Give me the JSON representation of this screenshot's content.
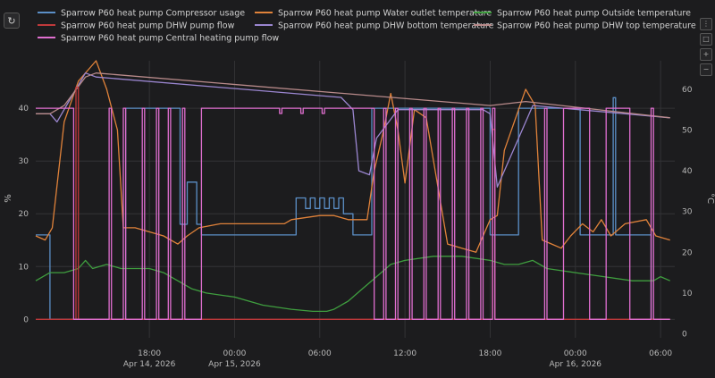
{
  "toolbar": {
    "reset_icon": "refresh-icon",
    "tool_icons": [
      "menu-icon",
      "crop-icon",
      "zoom-in-icon",
      "zoom-out-icon"
    ]
  },
  "chart_data": {
    "type": "line",
    "x_range": [
      "2026-04-14T10:00",
      "2026-04-16T07:00"
    ],
    "x_ticks": [
      {
        "t": "2026-04-14T18:00",
        "line1": "18:00",
        "line2": "Apr 14, 2026"
      },
      {
        "t": "2026-04-15T00:00",
        "line1": "00:00",
        "line2": "Apr 15, 2026"
      },
      {
        "t": "2026-04-15T06:00",
        "line1": "06:00",
        "line2": ""
      },
      {
        "t": "2026-04-15T12:00",
        "line1": "12:00",
        "line2": ""
      },
      {
        "t": "2026-04-15T18:00",
        "line1": "18:00",
        "line2": ""
      },
      {
        "t": "2026-04-16T00:00",
        "line1": "00:00",
        "line2": "Apr 16, 2026"
      },
      {
        "t": "2026-04-16T06:00",
        "line1": "06:00",
        "line2": ""
      }
    ],
    "y_left": {
      "label": "%",
      "range": [
        -3.5,
        49
      ],
      "ticks": [
        0,
        10,
        20,
        30,
        40
      ]
    },
    "y_right": {
      "label": "°C",
      "range": [
        -1,
        67
      ],
      "ticks": [
        0,
        10,
        20,
        30,
        40,
        50,
        60
      ]
    },
    "grid": true,
    "legend_position": "top",
    "series": [
      {
        "name": "Sparrow P60 heat pump Compressor usage",
        "color": "#5b8fc7",
        "axis": "left",
        "step": true,
        "points": [
          [
            "2026-04-14T10:00",
            16
          ],
          [
            "2026-04-14T10:40",
            16
          ],
          [
            "2026-04-14T11:00",
            0
          ],
          [
            "2026-04-14T16:10",
            0
          ],
          [
            "2026-04-14T16:20",
            40
          ],
          [
            "2026-04-14T19:20",
            40
          ],
          [
            "2026-04-14T20:10",
            18
          ],
          [
            "2026-04-14T20:40",
            26
          ],
          [
            "2026-04-14T21:00",
            26
          ],
          [
            "2026-04-14T21:20",
            18
          ],
          [
            "2026-04-14T21:40",
            16
          ],
          [
            "2026-04-15T04:00",
            16
          ],
          [
            "2026-04-15T04:20",
            23
          ],
          [
            "2026-04-15T05:00",
            21
          ],
          [
            "2026-04-15T05:20",
            23
          ],
          [
            "2026-04-15T05:40",
            21
          ],
          [
            "2026-04-15T06:00",
            23
          ],
          [
            "2026-04-15T06:20",
            21
          ],
          [
            "2026-04-15T06:40",
            23
          ],
          [
            "2026-04-15T07:00",
            21
          ],
          [
            "2026-04-15T07:20",
            23
          ],
          [
            "2026-04-15T07:40",
            20
          ],
          [
            "2026-04-15T08:20",
            16
          ],
          [
            "2026-04-15T09:20",
            16
          ],
          [
            "2026-04-15T09:40",
            40
          ],
          [
            "2026-04-15T17:50",
            40
          ],
          [
            "2026-04-15T18:00",
            16
          ],
          [
            "2026-04-15T19:40",
            16
          ],
          [
            "2026-04-15T20:00",
            40
          ],
          [
            "2026-04-16T00:00",
            40
          ],
          [
            "2026-04-16T00:20",
            16
          ],
          [
            "2026-04-16T02:20",
            16
          ],
          [
            "2026-04-16T02:40",
            42
          ],
          [
            "2026-04-16T02:50",
            16
          ],
          [
            "2026-04-16T05:00",
            16
          ],
          [
            "2026-04-16T05:20",
            0
          ],
          [
            "2026-04-16T06:40",
            0
          ]
        ]
      },
      {
        "name": "Sparrow P60 heat pump Water outlet temperature",
        "color": "#e0823a",
        "axis": "right",
        "points": [
          [
            "2026-04-14T10:00",
            24
          ],
          [
            "2026-04-14T10:40",
            23
          ],
          [
            "2026-04-14T11:10",
            26
          ],
          [
            "2026-04-14T12:00",
            52
          ],
          [
            "2026-04-14T13:00",
            62
          ],
          [
            "2026-04-14T14:15",
            67
          ],
          [
            "2026-04-14T15:00",
            60
          ],
          [
            "2026-04-14T15:45",
            50
          ],
          [
            "2026-04-14T16:10",
            26
          ],
          [
            "2026-04-14T17:00",
            26
          ],
          [
            "2026-04-14T19:00",
            24
          ],
          [
            "2026-04-14T20:00",
            22
          ],
          [
            "2026-04-14T20:40",
            24
          ],
          [
            "2026-04-14T21:30",
            26
          ],
          [
            "2026-04-14T23:00",
            27
          ],
          [
            "2026-04-15T03:30",
            27
          ],
          [
            "2026-04-15T04:00",
            28
          ],
          [
            "2026-04-15T06:00",
            29
          ],
          [
            "2026-04-15T07:00",
            29
          ],
          [
            "2026-04-15T08:00",
            28
          ],
          [
            "2026-04-15T09:20",
            28
          ],
          [
            "2026-04-15T09:50",
            40
          ],
          [
            "2026-04-15T10:30",
            50
          ],
          [
            "2026-04-15T11:00",
            59
          ],
          [
            "2026-04-15T11:30",
            50
          ],
          [
            "2026-04-15T12:00",
            37
          ],
          [
            "2026-04-15T12:40",
            55
          ],
          [
            "2026-04-15T13:30",
            53
          ],
          [
            "2026-04-15T15:00",
            22
          ],
          [
            "2026-04-15T16:00",
            21
          ],
          [
            "2026-04-15T17:00",
            20
          ],
          [
            "2026-04-15T18:00",
            28
          ],
          [
            "2026-04-15T18:30",
            29
          ],
          [
            "2026-04-15T19:00",
            45
          ],
          [
            "2026-04-15T20:00",
            55
          ],
          [
            "2026-04-15T20:30",
            60
          ],
          [
            "2026-04-15T21:10",
            56
          ],
          [
            "2026-04-15T21:40",
            23
          ],
          [
            "2026-04-15T22:20",
            22
          ],
          [
            "2026-04-15T23:00",
            21
          ],
          [
            "2026-04-15T23:40",
            24
          ],
          [
            "2026-04-16T00:30",
            27
          ],
          [
            "2026-04-16T01:15",
            25
          ],
          [
            "2026-04-16T01:50",
            28
          ],
          [
            "2026-04-16T02:30",
            24
          ],
          [
            "2026-04-16T03:30",
            27
          ],
          [
            "2026-04-16T05:00",
            28
          ],
          [
            "2026-04-16T05:40",
            24
          ],
          [
            "2026-04-16T06:40",
            23
          ]
        ]
      },
      {
        "name": "Sparrow P60 heat pump Outside temperature",
        "color": "#3f9e3f",
        "axis": "right",
        "points": [
          [
            "2026-04-14T10:00",
            13
          ],
          [
            "2026-04-14T11:00",
            15
          ],
          [
            "2026-04-14T12:00",
            15
          ],
          [
            "2026-04-14T13:00",
            16
          ],
          [
            "2026-04-14T13:30",
            18
          ],
          [
            "2026-04-14T14:00",
            16
          ],
          [
            "2026-04-14T15:00",
            17
          ],
          [
            "2026-04-14T16:00",
            16
          ],
          [
            "2026-04-14T17:00",
            16
          ],
          [
            "2026-04-14T18:00",
            16
          ],
          [
            "2026-04-14T19:00",
            15
          ],
          [
            "2026-04-14T20:00",
            13
          ],
          [
            "2026-04-14T21:00",
            11
          ],
          [
            "2026-04-14T22:00",
            10
          ],
          [
            "2026-04-15T00:00",
            9
          ],
          [
            "2026-04-15T02:00",
            7
          ],
          [
            "2026-04-15T04:00",
            6
          ],
          [
            "2026-04-15T05:30",
            5.5
          ],
          [
            "2026-04-15T06:30",
            5.5
          ],
          [
            "2026-04-15T07:00",
            6
          ],
          [
            "2026-04-15T08:00",
            8
          ],
          [
            "2026-04-15T09:00",
            11
          ],
          [
            "2026-04-15T10:00",
            14
          ],
          [
            "2026-04-15T11:00",
            17
          ],
          [
            "2026-04-15T12:00",
            18
          ],
          [
            "2026-04-15T14:00",
            19
          ],
          [
            "2026-04-15T16:00",
            19
          ],
          [
            "2026-04-15T18:00",
            18
          ],
          [
            "2026-04-15T19:00",
            17
          ],
          [
            "2026-04-15T20:00",
            17
          ],
          [
            "2026-04-15T21:00",
            18
          ],
          [
            "2026-04-15T22:00",
            16
          ],
          [
            "2026-04-16T00:00",
            15
          ],
          [
            "2026-04-16T02:00",
            14
          ],
          [
            "2026-04-16T04:00",
            13
          ],
          [
            "2026-04-16T05:30",
            13
          ],
          [
            "2026-04-16T06:00",
            14
          ],
          [
            "2026-04-16T06:40",
            13
          ]
        ]
      },
      {
        "name": "Sparrow P60 heat pump DHW bottom temperature",
        "color": "#9b86d0",
        "axis": "right",
        "points": [
          [
            "2026-04-14T10:00",
            54
          ],
          [
            "2026-04-14T11:00",
            54
          ],
          [
            "2026-04-14T11:30",
            52
          ],
          [
            "2026-04-14T12:30",
            58
          ],
          [
            "2026-04-14T13:30",
            64
          ],
          [
            "2026-04-14T14:15",
            63
          ],
          [
            "2026-04-15T07:30",
            58
          ],
          [
            "2026-04-15T08:20",
            55
          ],
          [
            "2026-04-15T08:45",
            40
          ],
          [
            "2026-04-15T09:30",
            39
          ],
          [
            "2026-04-15T10:00",
            48
          ],
          [
            "2026-04-15T11:30",
            55
          ],
          [
            "2026-04-15T17:30",
            55
          ],
          [
            "2026-04-15T18:00",
            54
          ],
          [
            "2026-04-15T18:30",
            36
          ],
          [
            "2026-04-15T19:30",
            44
          ],
          [
            "2026-04-15T20:30",
            52
          ],
          [
            "2026-04-15T21:00",
            56
          ],
          [
            "2026-04-16T06:40",
            53
          ]
        ]
      },
      {
        "name": "Sparrow P60 heat pump DHW top temperature",
        "color": "#b88a8a",
        "axis": "right",
        "points": [
          [
            "2026-04-14T10:00",
            54
          ],
          [
            "2026-04-14T11:00",
            54
          ],
          [
            "2026-04-14T12:00",
            56
          ],
          [
            "2026-04-14T13:30",
            63
          ],
          [
            "2026-04-14T14:15",
            64
          ],
          [
            "2026-04-15T18:00",
            56
          ],
          [
            "2026-04-15T20:30",
            57
          ],
          [
            "2026-04-16T06:40",
            53
          ]
        ]
      },
      {
        "name": "Sparrow P60 heat pump DHW pump flow",
        "color": "#c0393b",
        "axis": "left",
        "step": true,
        "points": [
          [
            "2026-04-14T10:00",
            0
          ],
          [
            "2026-04-14T12:40",
            0
          ],
          [
            "2026-04-14T12:50",
            44
          ],
          [
            "2026-04-14T13:00",
            0
          ],
          [
            "2026-04-15T18:00",
            0
          ],
          [
            "2026-04-15T18:10",
            36
          ],
          [
            "2026-04-15T18:20",
            0
          ],
          [
            "2026-04-16T06:40",
            0
          ]
        ]
      },
      {
        "name": "Sparrow P60 heat pump Central heating pump flow",
        "color": "#e06fd0",
        "axis": "left",
        "step": true,
        "points": [
          [
            "2026-04-14T10:00",
            40
          ],
          [
            "2026-04-14T12:30",
            40
          ],
          [
            "2026-04-14T12:40",
            0
          ],
          [
            "2026-04-14T15:00",
            0
          ],
          [
            "2026-04-14T15:10",
            40
          ],
          [
            "2026-04-14T15:20",
            0
          ],
          [
            "2026-04-14T16:00",
            0
          ],
          [
            "2026-04-14T16:10",
            40
          ],
          [
            "2026-04-14T16:20",
            0
          ],
          [
            "2026-04-14T17:20",
            0
          ],
          [
            "2026-04-14T17:30",
            40
          ],
          [
            "2026-04-14T17:40",
            0
          ],
          [
            "2026-04-14T18:20",
            0
          ],
          [
            "2026-04-14T18:30",
            40
          ],
          [
            "2026-04-14T18:40",
            0
          ],
          [
            "2026-04-14T19:10",
            0
          ],
          [
            "2026-04-14T19:20",
            40
          ],
          [
            "2026-04-14T19:30",
            0
          ],
          [
            "2026-04-14T20:10",
            0
          ],
          [
            "2026-04-14T20:20",
            40
          ],
          [
            "2026-04-14T20:30",
            0
          ],
          [
            "2026-04-14T21:30",
            0
          ],
          [
            "2026-04-14T21:40",
            40
          ],
          [
            "2026-04-15T03:00",
            40
          ],
          [
            "2026-04-15T03:10",
            39
          ],
          [
            "2026-04-15T03:20",
            40
          ],
          [
            "2026-04-15T04:30",
            40
          ],
          [
            "2026-04-15T04:40",
            39
          ],
          [
            "2026-04-15T04:50",
            40
          ],
          [
            "2026-04-15T06:00",
            40
          ],
          [
            "2026-04-15T06:10",
            39
          ],
          [
            "2026-04-15T06:20",
            40
          ],
          [
            "2026-04-15T09:40",
            40
          ],
          [
            "2026-04-15T09:50",
            0
          ],
          [
            "2026-04-15T10:20",
            0
          ],
          [
            "2026-04-15T10:30",
            40
          ],
          [
            "2026-04-15T10:40",
            0
          ],
          [
            "2026-04-15T11:10",
            0
          ],
          [
            "2026-04-15T11:20",
            40
          ],
          [
            "2026-04-15T11:30",
            0
          ],
          [
            "2026-04-15T12:10",
            0
          ],
          [
            "2026-04-15T12:20",
            40
          ],
          [
            "2026-04-15T12:30",
            0
          ],
          [
            "2026-04-15T13:10",
            0
          ],
          [
            "2026-04-15T13:20",
            40
          ],
          [
            "2026-04-15T13:30",
            0
          ],
          [
            "2026-04-15T14:10",
            0
          ],
          [
            "2026-04-15T14:20",
            40
          ],
          [
            "2026-04-15T14:30",
            0
          ],
          [
            "2026-04-15T15:10",
            0
          ],
          [
            "2026-04-15T15:20",
            40
          ],
          [
            "2026-04-15T15:30",
            0
          ],
          [
            "2026-04-15T16:10",
            0
          ],
          [
            "2026-04-15T16:20",
            40
          ],
          [
            "2026-04-15T16:30",
            0
          ],
          [
            "2026-04-15T17:10",
            0
          ],
          [
            "2026-04-15T17:20",
            40
          ],
          [
            "2026-04-15T17:30",
            0
          ],
          [
            "2026-04-15T18:00",
            0
          ],
          [
            "2026-04-15T18:10",
            40
          ],
          [
            "2026-04-15T18:20",
            0
          ],
          [
            "2026-04-15T21:40",
            0
          ],
          [
            "2026-04-15T21:50",
            40
          ],
          [
            "2026-04-15T22:00",
            0
          ],
          [
            "2026-04-15T23:00",
            0
          ],
          [
            "2026-04-15T23:10",
            40
          ],
          [
            "2026-04-16T00:50",
            40
          ],
          [
            "2026-04-16T01:00",
            0
          ],
          [
            "2026-04-16T02:00",
            0
          ],
          [
            "2026-04-16T02:10",
            40
          ],
          [
            "2026-04-16T03:40",
            40
          ],
          [
            "2026-04-16T03:50",
            0
          ],
          [
            "2026-04-16T05:10",
            0
          ],
          [
            "2026-04-16T05:20",
            40
          ],
          [
            "2026-04-16T05:30",
            0
          ],
          [
            "2026-04-16T06:40",
            0
          ]
        ]
      }
    ]
  }
}
